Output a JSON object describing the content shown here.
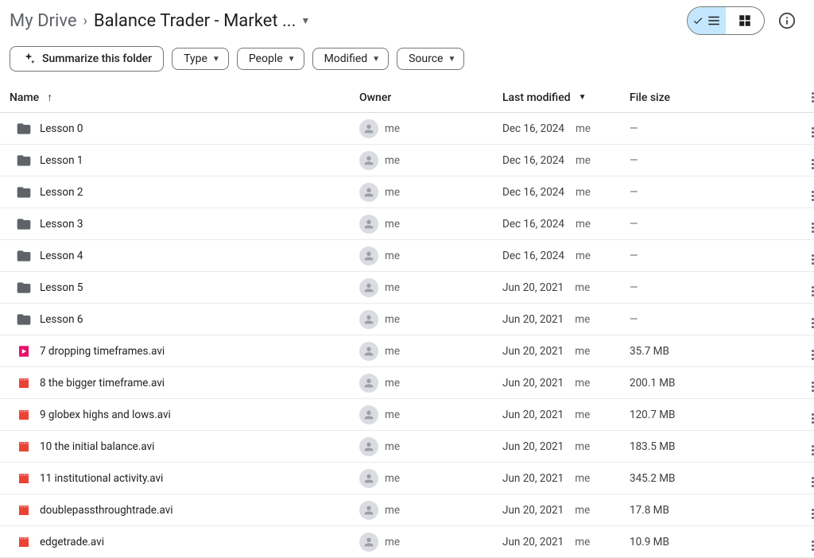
{
  "breadcrumb": {
    "root": "My Drive",
    "current": "Balance Trader - Market ..."
  },
  "toolbar": {
    "summarize_label": "Summarize this folder",
    "chips": [
      {
        "label": "Type"
      },
      {
        "label": "People"
      },
      {
        "label": "Modified"
      },
      {
        "label": "Source"
      }
    ]
  },
  "columns": {
    "name": "Name",
    "owner": "Owner",
    "modified": "Last modified",
    "size": "File size"
  },
  "owner_label": "me",
  "rows": [
    {
      "type": "folder",
      "name": "Lesson 0",
      "modified": "Dec 16, 2024",
      "mod_by": "me",
      "size": "—"
    },
    {
      "type": "folder",
      "name": "Lesson 1",
      "modified": "Dec 16, 2024",
      "mod_by": "me",
      "size": "—"
    },
    {
      "type": "folder",
      "name": "Lesson 2",
      "modified": "Dec 16, 2024",
      "mod_by": "me",
      "size": "—"
    },
    {
      "type": "folder",
      "name": "Lesson 3",
      "modified": "Dec 16, 2024",
      "mod_by": "me",
      "size": "—"
    },
    {
      "type": "folder",
      "name": "Lesson 4",
      "modified": "Dec 16, 2024",
      "mod_by": "me",
      "size": "—"
    },
    {
      "type": "folder",
      "name": "Lesson 5",
      "modified": "Jun 20, 2021",
      "mod_by": "me",
      "size": "—"
    },
    {
      "type": "folder",
      "name": "Lesson 6",
      "modified": "Jun 20, 2021",
      "mod_by": "me",
      "size": "—"
    },
    {
      "type": "video-a",
      "name": "7 dropping timeframes.avi",
      "modified": "Jun 20, 2021",
      "mod_by": "me",
      "size": "35.7 MB"
    },
    {
      "type": "video-b",
      "name": "8 the bigger timeframe.avi",
      "modified": "Jun 20, 2021",
      "mod_by": "me",
      "size": "200.1 MB"
    },
    {
      "type": "video-b",
      "name": "9 globex highs and lows.avi",
      "modified": "Jun 20, 2021",
      "mod_by": "me",
      "size": "120.7 MB"
    },
    {
      "type": "video-b",
      "name": "10 the initial balance.avi",
      "modified": "Jun 20, 2021",
      "mod_by": "me",
      "size": "183.5 MB"
    },
    {
      "type": "video-b",
      "name": "11 institutional activity.avi",
      "modified": "Jun 20, 2021",
      "mod_by": "me",
      "size": "345.2 MB"
    },
    {
      "type": "video-b",
      "name": "doublepassthroughtrade.avi",
      "modified": "Jun 20, 2021",
      "mod_by": "me",
      "size": "17.8 MB"
    },
    {
      "type": "video-b",
      "name": "edgetrade.avi",
      "modified": "Jun 20, 2021",
      "mod_by": "me",
      "size": "10.9 MB"
    }
  ],
  "colors": {
    "folder": "#5f6368",
    "video_a": "#ea0f6b",
    "video_b": "#ea4335",
    "segmented_active_bg": "#c2e7ff",
    "border": "#dadce0"
  }
}
